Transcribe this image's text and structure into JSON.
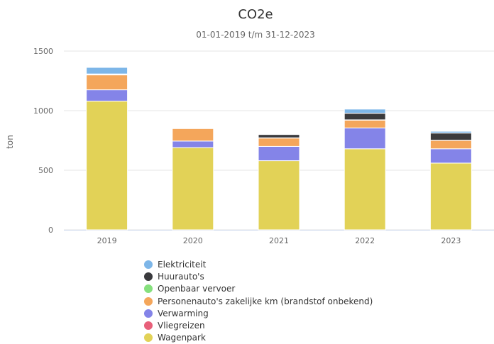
{
  "chart_data": {
    "type": "bar",
    "stacked": true,
    "title": "CO2e",
    "subtitle": "01-01-2019 t/m 31-12-2023",
    "ylabel": "ton",
    "xlabel": "",
    "ylim": [
      0,
      1500
    ],
    "yticks": [
      0,
      500,
      1000,
      1500
    ],
    "categories": [
      "2019",
      "2020",
      "2021",
      "2022",
      "2023"
    ],
    "grid": true,
    "legend_position": "bottom",
    "series": [
      {
        "name": "Wagenpark",
        "color": "#e2d257",
        "values": [
          1080,
          690,
          580,
          680,
          560
        ]
      },
      {
        "name": "Vliegreizen",
        "color": "#e8607a",
        "values": [
          0,
          0,
          0,
          0,
          0
        ]
      },
      {
        "name": "Verwarming",
        "color": "#8484e8",
        "values": [
          95,
          55,
          120,
          175,
          120
        ]
      },
      {
        "name": "Personenauto's zakelijke km (brandstof onbekend)",
        "color": "#f4a65b",
        "values": [
          125,
          105,
          70,
          65,
          70
        ]
      },
      {
        "name": "Openbaar vervoer",
        "color": "#86e07d",
        "values": [
          3,
          2,
          2,
          3,
          2
        ]
      },
      {
        "name": "Huurauto's",
        "color": "#3a3a3d",
        "values": [
          5,
          5,
          28,
          55,
          60
        ]
      },
      {
        "name": "Elektriciteit",
        "color": "#7db6e8",
        "values": [
          55,
          5,
          3,
          35,
          15
        ]
      }
    ]
  }
}
